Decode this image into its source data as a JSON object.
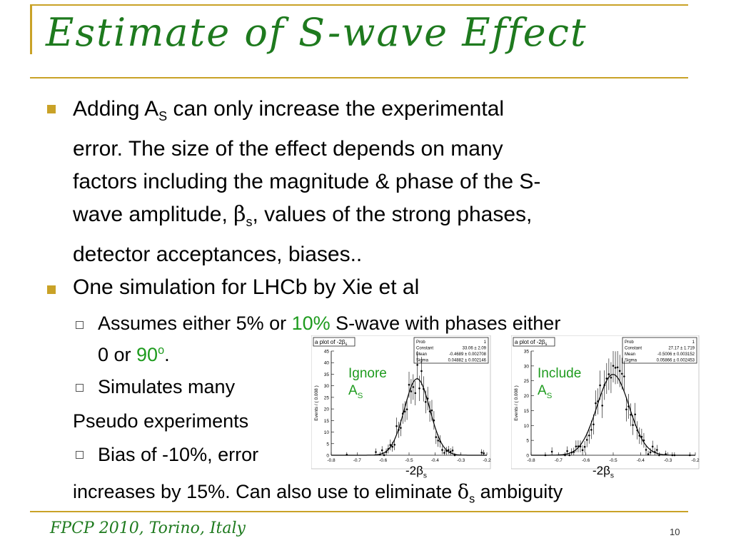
{
  "slide": {
    "title": "Estimate of S-wave Effect",
    "bullet1": {
      "l1_pre": "Adding A",
      "l1_sub": "S",
      "l1_post": " can only increase the experimental",
      "l2": "error. The size of the effect depends on many",
      "l3": "factors including the magnitude & phase of the S-",
      "l4_pre": "wave amplitude, ",
      "l4_beta": "β",
      "l4_sub": "s",
      "l4_post": ", values of the strong phases,",
      "l5": "detector acceptances, biases.."
    },
    "bullet2": "One simulation for LHCb by Xie et al",
    "sub1": {
      "pre": "Assumes either 5% or ",
      "green": "10%",
      "post": " S-wave with phases either",
      "l2_pre": "0 or ",
      "l2_green": "90",
      "l2_sup": "o",
      "l2_post": "."
    },
    "sub2": "Simulates many",
    "pseudo": "Pseudo experiments",
    "sub3": "Bias of -10%, error",
    "last_pre": "increases by 15%. Can also use to eliminate ",
    "last_delta": "δ",
    "last_sub": "s",
    "last_post": " ambiguity"
  },
  "footer": {
    "left": "FPCP 2010, Torino, Italy",
    "page": "10"
  },
  "plots": [
    {
      "header": "a plot of -2β",
      "header_sub": "s",
      "annot_l1": "Ignore",
      "annot_l2_pre": "A",
      "annot_l2_sub": "S",
      "xlabel_pre": "-2β",
      "xlabel_sub": "s",
      "ylabel": "Events / ( 0.008 )",
      "stats": [
        {
          "k": "Prob",
          "v": "1"
        },
        {
          "k": "Constant",
          "v": "33.06 ± 2.09"
        },
        {
          "k": "Mean",
          "v": "-0.4689 ± 0.002708"
        },
        {
          "k": "Sigma",
          "v": "0.04882 ± 0.002146"
        }
      ]
    },
    {
      "header": "a plot of -2β",
      "header_sub": "s",
      "annot_l1": "Include",
      "annot_l2_pre": "A",
      "annot_l2_sub": "S",
      "xlabel_pre": "-2β",
      "xlabel_sub": "s",
      "ylabel": "Events / ( 0.008 )",
      "stats": [
        {
          "k": "Prob",
          "v": "1"
        },
        {
          "k": "Constant",
          "v": "27.17 ± 1.719"
        },
        {
          "k": "Mean",
          "v": "-0.5006 ± 0.003152"
        },
        {
          "k": "Sigma",
          "v": "0.05866 ± 0.002453"
        }
      ]
    }
  ],
  "chart_data": [
    {
      "type": "scatter",
      "title": "a plot of -2βs",
      "ylabel": "Events / ( 0.008 )",
      "xlim": [
        -0.8,
        -0.2
      ],
      "ylim": [
        0,
        45
      ],
      "xticks": [
        -0.8,
        -0.7,
        -0.6,
        -0.5,
        -0.4,
        -0.3,
        -0.2
      ],
      "yticks": [
        0,
        5,
        10,
        15,
        20,
        25,
        30,
        35,
        40,
        45
      ],
      "fit": {
        "constant": 33.06,
        "mean": -0.4689,
        "sigma": 0.04882
      }
    },
    {
      "type": "scatter",
      "title": "a plot of -2βs",
      "ylabel": "Events / ( 0.008 )",
      "xlim": [
        -0.8,
        -0.2
      ],
      "ylim": [
        0,
        35
      ],
      "xticks": [
        -0.8,
        -0.7,
        -0.6,
        -0.5,
        -0.4,
        -0.3,
        -0.2
      ],
      "yticks": [
        0,
        5,
        10,
        15,
        20,
        25,
        30,
        35
      ],
      "fit": {
        "constant": 27.17,
        "mean": -0.5006,
        "sigma": 0.05866
      }
    }
  ]
}
